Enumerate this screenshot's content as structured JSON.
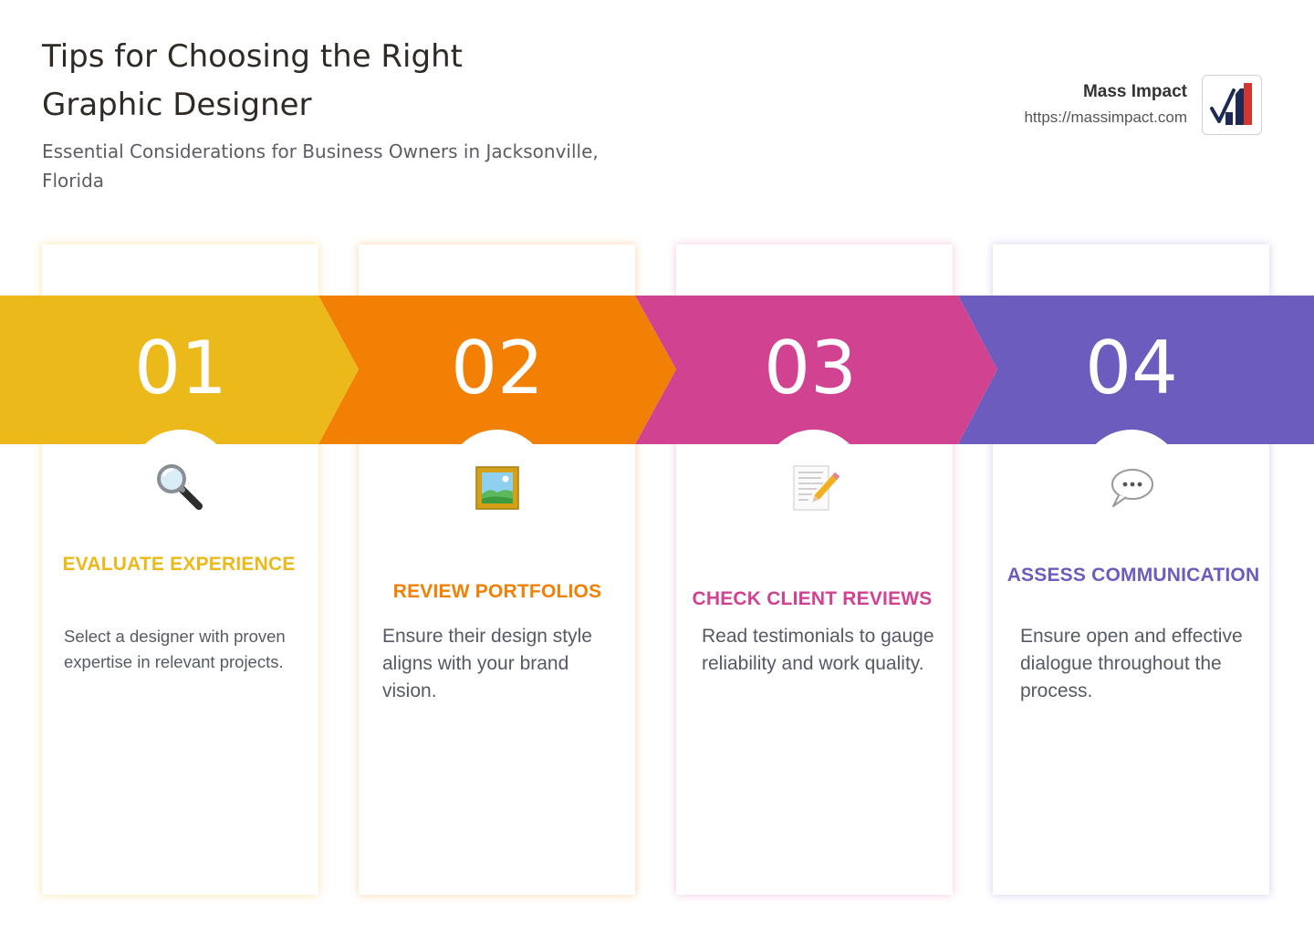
{
  "header": {
    "title": "Tips for Choosing the Right Graphic Designer",
    "subtitle": "Essential Considerations for Business Owners in Jacksonville, Florida"
  },
  "brand": {
    "name": "Mass Impact",
    "url": "https://massimpact.com"
  },
  "steps": [
    {
      "number": "01",
      "title": "EVALUATE EXPERIENCE",
      "description": "Select a designer with proven expertise in relevant projects.",
      "icon": "magnifying-glass-icon",
      "color": "#ECB91A"
    },
    {
      "number": "02",
      "title": "REVIEW PORTFOLIOS",
      "description": "Ensure their design style aligns with your brand vision.",
      "icon": "framed-picture-icon",
      "color": "#F28005"
    },
    {
      "number": "03",
      "title": "CHECK CLIENT REVIEWS",
      "description": "Read testimonials to gauge reliability and work quality.",
      "icon": "memo-icon",
      "color": "#D14291"
    },
    {
      "number": "04",
      "title": "ASSESS COMMUNICATION",
      "description": "Ensure open and effective dialogue throughout the process.",
      "icon": "speech-bubble-icon",
      "color": "#6B5CBD"
    }
  ]
}
